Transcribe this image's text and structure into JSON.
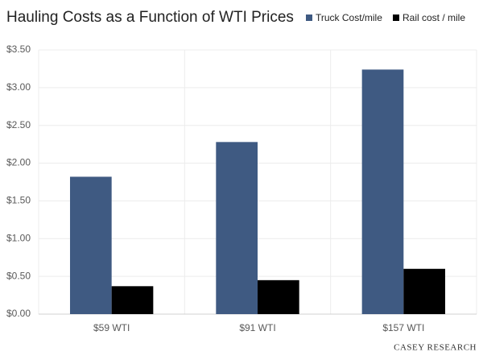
{
  "chart_data": {
    "type": "bar",
    "title": "Hauling Costs as a Function of WTI Prices",
    "categories": [
      "$59 WTI",
      "$91 WTI",
      "$157 WTI"
    ],
    "series": [
      {
        "name": "Truck Cost/mile",
        "color": "#3f5a82",
        "values": [
          1.82,
          2.28,
          3.24
        ]
      },
      {
        "name": "Rail cost / mile",
        "color": "#000000",
        "values": [
          0.37,
          0.45,
          0.6
        ]
      }
    ],
    "ylim": [
      0,
      3.5
    ],
    "yticks": [
      {
        "value": 0,
        "label": "$0.00"
      },
      {
        "value": 0.5,
        "label": "$0.50"
      },
      {
        "value": 1,
        "label": "$1.00"
      },
      {
        "value": 1.5,
        "label": "$1.50"
      },
      {
        "value": 2,
        "label": "$2.00"
      },
      {
        "value": 2.5,
        "label": "$2.50"
      },
      {
        "value": 3,
        "label": "$3.00"
      },
      {
        "value": 3.5,
        "label": "$3.50"
      }
    ],
    "grid": true,
    "legend": "top-right",
    "watermark": "CASEY RESEARCH"
  }
}
